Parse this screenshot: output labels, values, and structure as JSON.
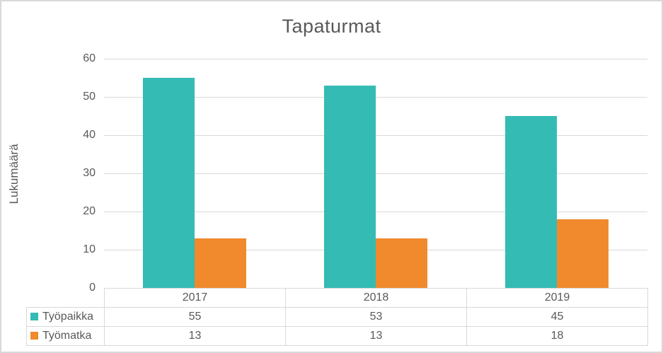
{
  "chart_data": {
    "type": "bar",
    "title": "Tapaturmat",
    "xlabel": "",
    "ylabel": "Lukumäärä",
    "categories": [
      "2017",
      "2018",
      "2019"
    ],
    "series": [
      {
        "name": "Työpaikka",
        "color": "#34bbb3",
        "values": [
          55,
          53,
          45
        ]
      },
      {
        "name": "Työmatka",
        "color": "#f08a2d",
        "values": [
          13,
          13,
          18
        ]
      }
    ],
    "ylim": [
      0,
      60
    ],
    "yticks": [
      0,
      10,
      20,
      30,
      40,
      50,
      60
    ],
    "grid": true,
    "legend_position": "data-table-left",
    "data_table_shown": true
  },
  "colors": {
    "text": "#595959",
    "grid": "#d9d9d9",
    "table_border": "#d9d9d9",
    "frame_border": "#d9d9d9",
    "background": "#ffffff"
  }
}
